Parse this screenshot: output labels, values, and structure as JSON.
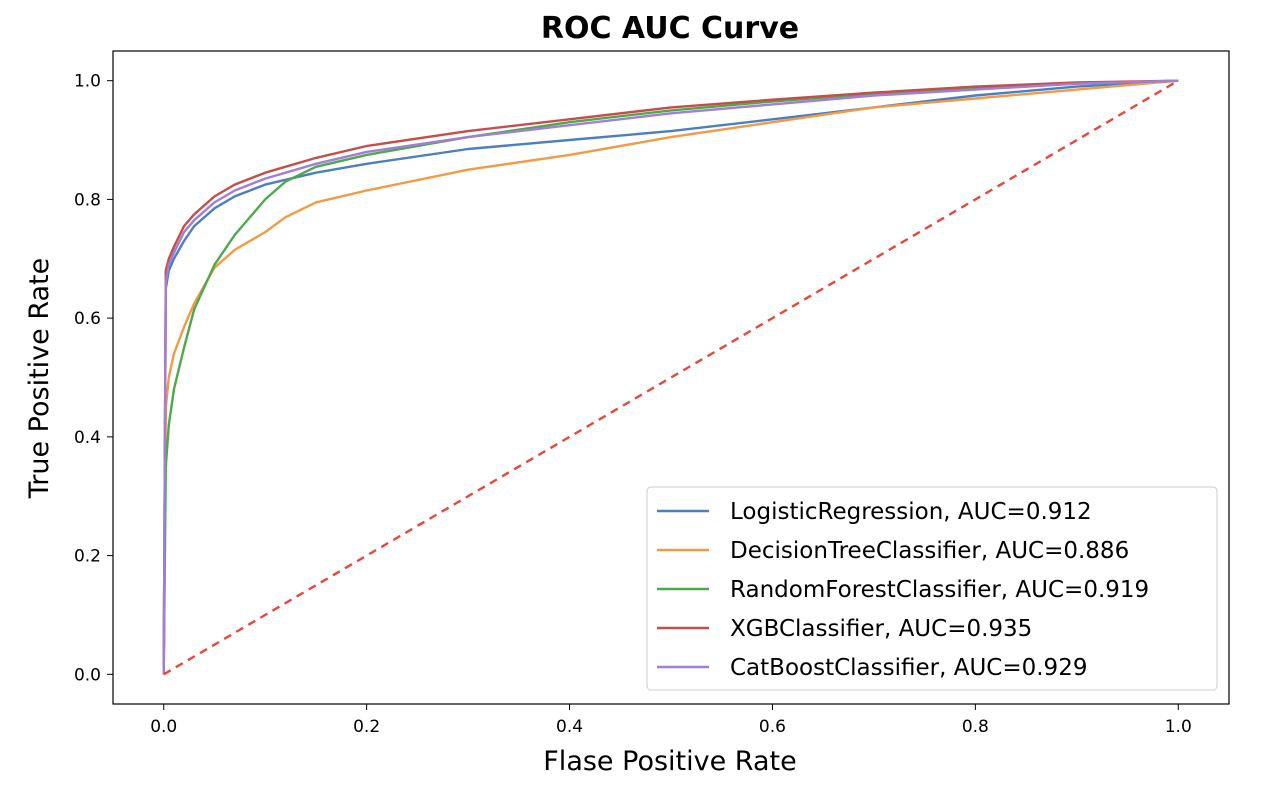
{
  "chart_data": {
    "type": "line",
    "title": "ROC AUC Curve",
    "xlabel": "Flase Positive Rate",
    "ylabel": "True Positive Rate",
    "xlim": [
      -0.05,
      1.05
    ],
    "ylim": [
      -0.05,
      1.05
    ],
    "xticks": [
      0.0,
      0.2,
      0.4,
      0.6,
      0.8,
      1.0
    ],
    "yticks": [
      0.0,
      0.2,
      0.4,
      0.6,
      0.8,
      1.0
    ],
    "tick_labels_x": [
      "0.0",
      "0.2",
      "0.4",
      "0.6",
      "0.8",
      "1.0"
    ],
    "tick_labels_y": [
      "0.0",
      "0.2",
      "0.4",
      "0.6",
      "0.8",
      "1.0"
    ],
    "grid": false,
    "legend_position": "lower-right",
    "series": [
      {
        "name": "LogisticRegression, AUC=0.912",
        "color": "#4c7fbf",
        "x": [
          0,
          0.002,
          0.005,
          0.01,
          0.02,
          0.03,
          0.05,
          0.07,
          0.1,
          0.15,
          0.2,
          0.3,
          0.4,
          0.5,
          0.6,
          0.7,
          0.8,
          0.9,
          1.0
        ],
        "y": [
          0,
          0.65,
          0.68,
          0.7,
          0.73,
          0.755,
          0.785,
          0.805,
          0.825,
          0.845,
          0.86,
          0.885,
          0.9,
          0.915,
          0.935,
          0.955,
          0.975,
          0.99,
          1.0
        ]
      },
      {
        "name": "DecisionTreeClassifier, AUC=0.886",
        "color": "#f39a45",
        "x": [
          0,
          0.002,
          0.005,
          0.01,
          0.02,
          0.03,
          0.05,
          0.07,
          0.1,
          0.12,
          0.15,
          0.2,
          0.3,
          0.4,
          0.5,
          0.6,
          0.7,
          0.8,
          0.9,
          1.0
        ],
        "y": [
          0,
          0.45,
          0.5,
          0.54,
          0.585,
          0.625,
          0.685,
          0.715,
          0.745,
          0.77,
          0.795,
          0.815,
          0.85,
          0.875,
          0.905,
          0.93,
          0.955,
          0.97,
          0.985,
          1.0
        ]
      },
      {
        "name": "RandomForestClassifier, AUC=0.919",
        "color": "#4fa84b",
        "x": [
          0,
          0.002,
          0.005,
          0.01,
          0.02,
          0.03,
          0.05,
          0.07,
          0.1,
          0.12,
          0.15,
          0.2,
          0.3,
          0.4,
          0.5,
          0.6,
          0.7,
          0.8,
          0.9,
          1.0
        ],
        "y": [
          0,
          0.35,
          0.42,
          0.48,
          0.55,
          0.615,
          0.69,
          0.74,
          0.8,
          0.83,
          0.855,
          0.875,
          0.905,
          0.93,
          0.95,
          0.965,
          0.978,
          0.988,
          0.995,
          1.0
        ]
      },
      {
        "name": "XGBClassifier, AUC=0.935",
        "color": "#c44e4a",
        "x": [
          0,
          0.002,
          0.005,
          0.01,
          0.02,
          0.03,
          0.05,
          0.07,
          0.1,
          0.15,
          0.2,
          0.3,
          0.4,
          0.5,
          0.6,
          0.7,
          0.8,
          0.9,
          1.0
        ],
        "y": [
          0,
          0.68,
          0.7,
          0.72,
          0.755,
          0.775,
          0.805,
          0.825,
          0.845,
          0.87,
          0.89,
          0.915,
          0.935,
          0.955,
          0.968,
          0.98,
          0.99,
          0.997,
          1.0
        ]
      },
      {
        "name": "CatBoostClassifier, AUC=0.929",
        "color": "#a07fd6",
        "x": [
          0,
          0.002,
          0.005,
          0.01,
          0.02,
          0.03,
          0.05,
          0.07,
          0.1,
          0.15,
          0.2,
          0.3,
          0.4,
          0.5,
          0.6,
          0.7,
          0.8,
          0.9,
          1.0
        ],
        "y": [
          0,
          0.66,
          0.69,
          0.71,
          0.745,
          0.765,
          0.795,
          0.815,
          0.835,
          0.86,
          0.88,
          0.905,
          0.925,
          0.945,
          0.96,
          0.975,
          0.985,
          0.995,
          1.0
        ]
      }
    ],
    "reference_line": {
      "color": "#e8473b",
      "style": "dashed",
      "x": [
        0,
        1
      ],
      "y": [
        0,
        1
      ]
    }
  }
}
